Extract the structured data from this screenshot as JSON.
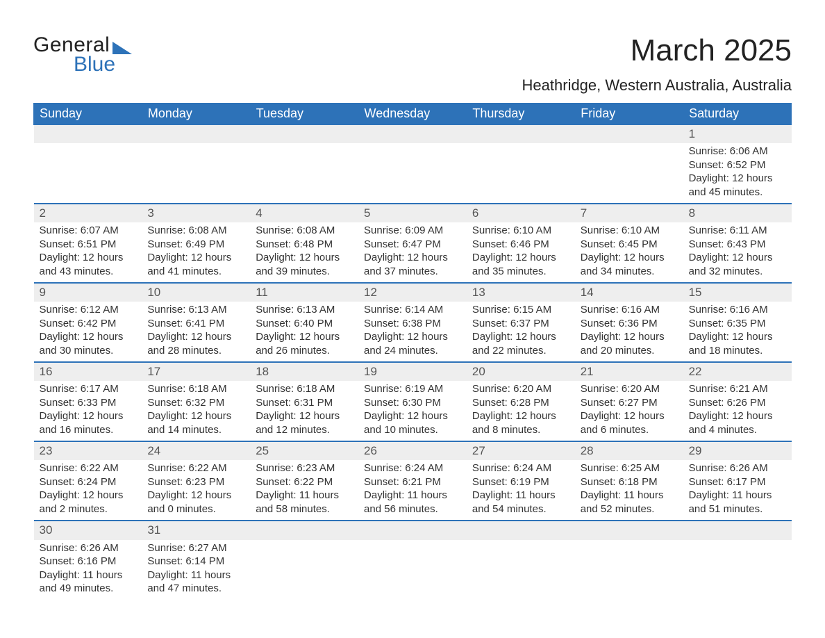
{
  "logo": {
    "text1": "General",
    "text2": "Blue"
  },
  "title": "March 2025",
  "location": "Heathridge, Western Australia, Australia",
  "colors": {
    "header_bg": "#2d72b8",
    "header_text": "#ffffff",
    "daynum_bg": "#eeeeee",
    "text": "#333333",
    "border": "#2d72b8",
    "background": "#ffffff"
  },
  "typography": {
    "title_fontsize": 44,
    "location_fontsize": 22,
    "dayheader_fontsize": 18,
    "daynum_fontsize": 17,
    "body_fontsize": 15
  },
  "day_headers": [
    "Sunday",
    "Monday",
    "Tuesday",
    "Wednesday",
    "Thursday",
    "Friday",
    "Saturday"
  ],
  "weeks": [
    [
      null,
      null,
      null,
      null,
      null,
      null,
      {
        "n": "1",
        "sr": "Sunrise: 6:06 AM",
        "ss": "Sunset: 6:52 PM",
        "d1": "Daylight: 12 hours",
        "d2": "and 45 minutes."
      }
    ],
    [
      {
        "n": "2",
        "sr": "Sunrise: 6:07 AM",
        "ss": "Sunset: 6:51 PM",
        "d1": "Daylight: 12 hours",
        "d2": "and 43 minutes."
      },
      {
        "n": "3",
        "sr": "Sunrise: 6:08 AM",
        "ss": "Sunset: 6:49 PM",
        "d1": "Daylight: 12 hours",
        "d2": "and 41 minutes."
      },
      {
        "n": "4",
        "sr": "Sunrise: 6:08 AM",
        "ss": "Sunset: 6:48 PM",
        "d1": "Daylight: 12 hours",
        "d2": "and 39 minutes."
      },
      {
        "n": "5",
        "sr": "Sunrise: 6:09 AM",
        "ss": "Sunset: 6:47 PM",
        "d1": "Daylight: 12 hours",
        "d2": "and 37 minutes."
      },
      {
        "n": "6",
        "sr": "Sunrise: 6:10 AM",
        "ss": "Sunset: 6:46 PM",
        "d1": "Daylight: 12 hours",
        "d2": "and 35 minutes."
      },
      {
        "n": "7",
        "sr": "Sunrise: 6:10 AM",
        "ss": "Sunset: 6:45 PM",
        "d1": "Daylight: 12 hours",
        "d2": "and 34 minutes."
      },
      {
        "n": "8",
        "sr": "Sunrise: 6:11 AM",
        "ss": "Sunset: 6:43 PM",
        "d1": "Daylight: 12 hours",
        "d2": "and 32 minutes."
      }
    ],
    [
      {
        "n": "9",
        "sr": "Sunrise: 6:12 AM",
        "ss": "Sunset: 6:42 PM",
        "d1": "Daylight: 12 hours",
        "d2": "and 30 minutes."
      },
      {
        "n": "10",
        "sr": "Sunrise: 6:13 AM",
        "ss": "Sunset: 6:41 PM",
        "d1": "Daylight: 12 hours",
        "d2": "and 28 minutes."
      },
      {
        "n": "11",
        "sr": "Sunrise: 6:13 AM",
        "ss": "Sunset: 6:40 PM",
        "d1": "Daylight: 12 hours",
        "d2": "and 26 minutes."
      },
      {
        "n": "12",
        "sr": "Sunrise: 6:14 AM",
        "ss": "Sunset: 6:38 PM",
        "d1": "Daylight: 12 hours",
        "d2": "and 24 minutes."
      },
      {
        "n": "13",
        "sr": "Sunrise: 6:15 AM",
        "ss": "Sunset: 6:37 PM",
        "d1": "Daylight: 12 hours",
        "d2": "and 22 minutes."
      },
      {
        "n": "14",
        "sr": "Sunrise: 6:16 AM",
        "ss": "Sunset: 6:36 PM",
        "d1": "Daylight: 12 hours",
        "d2": "and 20 minutes."
      },
      {
        "n": "15",
        "sr": "Sunrise: 6:16 AM",
        "ss": "Sunset: 6:35 PM",
        "d1": "Daylight: 12 hours",
        "d2": "and 18 minutes."
      }
    ],
    [
      {
        "n": "16",
        "sr": "Sunrise: 6:17 AM",
        "ss": "Sunset: 6:33 PM",
        "d1": "Daylight: 12 hours",
        "d2": "and 16 minutes."
      },
      {
        "n": "17",
        "sr": "Sunrise: 6:18 AM",
        "ss": "Sunset: 6:32 PM",
        "d1": "Daylight: 12 hours",
        "d2": "and 14 minutes."
      },
      {
        "n": "18",
        "sr": "Sunrise: 6:18 AM",
        "ss": "Sunset: 6:31 PM",
        "d1": "Daylight: 12 hours",
        "d2": "and 12 minutes."
      },
      {
        "n": "19",
        "sr": "Sunrise: 6:19 AM",
        "ss": "Sunset: 6:30 PM",
        "d1": "Daylight: 12 hours",
        "d2": "and 10 minutes."
      },
      {
        "n": "20",
        "sr": "Sunrise: 6:20 AM",
        "ss": "Sunset: 6:28 PM",
        "d1": "Daylight: 12 hours",
        "d2": "and 8 minutes."
      },
      {
        "n": "21",
        "sr": "Sunrise: 6:20 AM",
        "ss": "Sunset: 6:27 PM",
        "d1": "Daylight: 12 hours",
        "d2": "and 6 minutes."
      },
      {
        "n": "22",
        "sr": "Sunrise: 6:21 AM",
        "ss": "Sunset: 6:26 PM",
        "d1": "Daylight: 12 hours",
        "d2": "and 4 minutes."
      }
    ],
    [
      {
        "n": "23",
        "sr": "Sunrise: 6:22 AM",
        "ss": "Sunset: 6:24 PM",
        "d1": "Daylight: 12 hours",
        "d2": "and 2 minutes."
      },
      {
        "n": "24",
        "sr": "Sunrise: 6:22 AM",
        "ss": "Sunset: 6:23 PM",
        "d1": "Daylight: 12 hours",
        "d2": "and 0 minutes."
      },
      {
        "n": "25",
        "sr": "Sunrise: 6:23 AM",
        "ss": "Sunset: 6:22 PM",
        "d1": "Daylight: 11 hours",
        "d2": "and 58 minutes."
      },
      {
        "n": "26",
        "sr": "Sunrise: 6:24 AM",
        "ss": "Sunset: 6:21 PM",
        "d1": "Daylight: 11 hours",
        "d2": "and 56 minutes."
      },
      {
        "n": "27",
        "sr": "Sunrise: 6:24 AM",
        "ss": "Sunset: 6:19 PM",
        "d1": "Daylight: 11 hours",
        "d2": "and 54 minutes."
      },
      {
        "n": "28",
        "sr": "Sunrise: 6:25 AM",
        "ss": "Sunset: 6:18 PM",
        "d1": "Daylight: 11 hours",
        "d2": "and 52 minutes."
      },
      {
        "n": "29",
        "sr": "Sunrise: 6:26 AM",
        "ss": "Sunset: 6:17 PM",
        "d1": "Daylight: 11 hours",
        "d2": "and 51 minutes."
      }
    ],
    [
      {
        "n": "30",
        "sr": "Sunrise: 6:26 AM",
        "ss": "Sunset: 6:16 PM",
        "d1": "Daylight: 11 hours",
        "d2": "and 49 minutes."
      },
      {
        "n": "31",
        "sr": "Sunrise: 6:27 AM",
        "ss": "Sunset: 6:14 PM",
        "d1": "Daylight: 11 hours",
        "d2": "and 47 minutes."
      },
      null,
      null,
      null,
      null,
      null
    ]
  ]
}
